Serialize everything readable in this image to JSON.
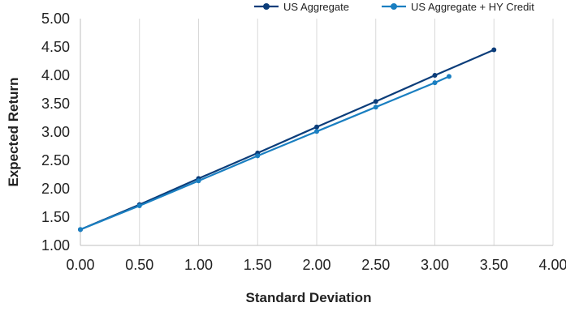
{
  "chart_data": {
    "type": "line",
    "title": "",
    "xlabel": "Standard Deviation",
    "ylabel": "Expected Return",
    "xlim": [
      0.0,
      4.0
    ],
    "ylim": [
      1.0,
      5.0
    ],
    "xticks": [
      "0.00",
      "0.50",
      "1.00",
      "1.50",
      "2.00",
      "2.50",
      "3.00",
      "3.50",
      "4.00"
    ],
    "yticks": [
      "1.00",
      "1.50",
      "2.00",
      "2.50",
      "3.00",
      "3.50",
      "4.00",
      "4.50",
      "5.00"
    ],
    "grid": "vertical",
    "legend_position": "top-right",
    "series": [
      {
        "name": "US Aggregate",
        "color": "#0b3d7a",
        "x": [
          0.0,
          0.5,
          1.0,
          1.5,
          2.0,
          2.5,
          3.0,
          3.5
        ],
        "y": [
          1.28,
          1.72,
          2.18,
          2.63,
          3.09,
          3.54,
          4.0,
          4.45
        ]
      },
      {
        "name": "US Aggregate + HY Credit",
        "color": "#1a7fc1",
        "x": [
          0.0,
          0.5,
          1.0,
          1.5,
          2.0,
          2.5,
          3.0,
          3.12
        ],
        "y": [
          1.28,
          1.7,
          2.14,
          2.58,
          3.01,
          3.44,
          3.87,
          3.98
        ]
      }
    ]
  }
}
